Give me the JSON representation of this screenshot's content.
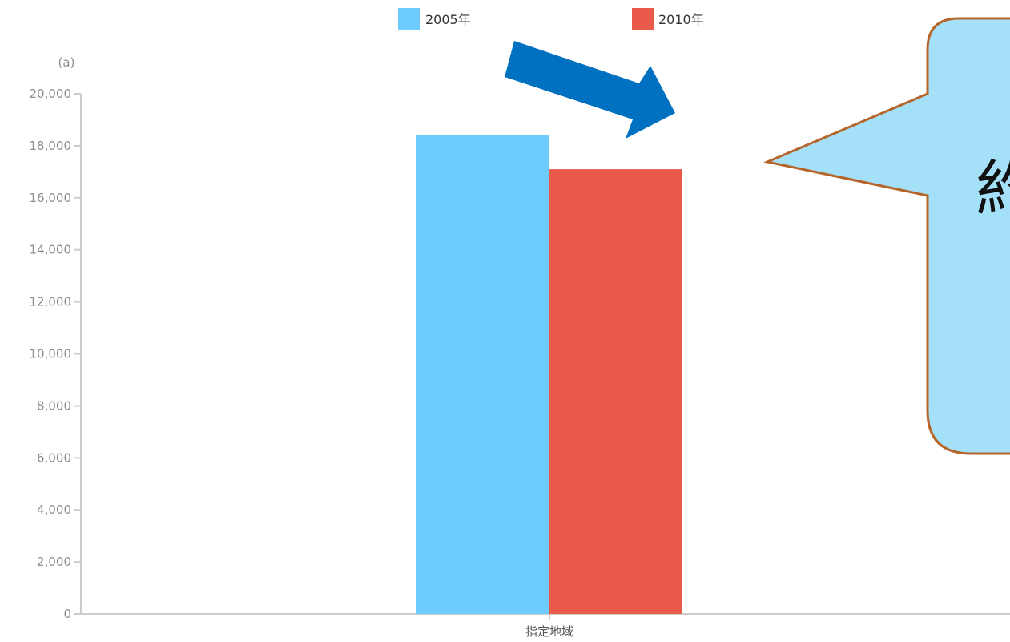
{
  "chart_data": {
    "type": "bar",
    "unit_label": "(a)",
    "categories": [
      "指定地域"
    ],
    "series": [
      {
        "name": "2005年",
        "values": [
          18400
        ],
        "color": "#6DCBFD"
      },
      {
        "name": "2010年",
        "values": [
          17100
        ],
        "color": "#EA5A4B"
      }
    ],
    "ylim": [
      0,
      20000
    ],
    "yticks": [
      "0",
      "2,000",
      "4,000",
      "6,000",
      "8,000",
      "10,000",
      "12,000",
      "14,000",
      "16,000",
      "18,000",
      "20,000"
    ],
    "grid": false,
    "legend_position": "top-center"
  },
  "callout": {
    "text": "約",
    "fill_color": "#A4E1F9",
    "border_color": "#B5652A"
  },
  "arrow": {
    "icon": "arrow-down-right-icon",
    "color": "#0070C0"
  }
}
